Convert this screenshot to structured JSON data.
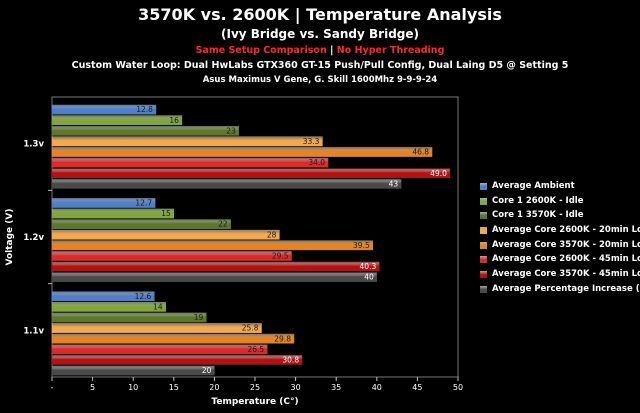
{
  "header": {
    "title": "3570K vs. 2600K | Temperature Analysis",
    "subtitle": "(Ivy Bridge vs. Sandy Bridge)",
    "note_part1": "Same Setup Comparison",
    "note_sep": " | ",
    "note_part2": "No Hyper Threading",
    "setup_line": "Custom Water Loop: Dual HwLabs GTX360 GT-15 Push/Pull Config, Dual Laing D5 @ Setting 5",
    "hardware_line": "Asus Maximus V Gene, G. Skill 1600Mhz 9-9-9-24"
  },
  "chart_data": {
    "type": "bar",
    "orientation": "horizontal",
    "xlabel": "Temperature (C°)",
    "ylabel": "Voltage (V)",
    "xlim": [
      0,
      50
    ],
    "x_ticks": [
      "-",
      "5",
      "10",
      "15",
      "20",
      "25",
      "30",
      "35",
      "40",
      "45",
      "50"
    ],
    "categories": [
      "1.3v",
      "1.2v",
      "1.1v"
    ],
    "legend_position": "right",
    "series": [
      {
        "name": "Average Ambient",
        "color": "#4d7fd0",
        "values": [
          12.8,
          12.7,
          12.6
        ],
        "labels": [
          "12.8",
          "12.7",
          "12.6"
        ]
      },
      {
        "name": "Core 1 2600K - Idle",
        "color": "#7fa73a",
        "values": [
          16,
          15,
          14
        ],
        "labels": [
          "16",
          "15",
          "14"
        ]
      },
      {
        "name": "Core 1 3570K - Idle",
        "color": "#5a7a2a",
        "values": [
          23,
          22,
          19
        ],
        "labels": [
          "23",
          "22",
          "19"
        ]
      },
      {
        "name": "Average Core 2600K - 20min Load",
        "color": "#f7a94a",
        "values": [
          33.3,
          28,
          25.8
        ],
        "labels": [
          "33.3",
          "28",
          "25.8"
        ]
      },
      {
        "name": "Average Core 3570K - 20min Load",
        "color": "#e8831d",
        "values": [
          46.8,
          39.5,
          29.8
        ],
        "labels": [
          "46.8",
          "39.5",
          "29.8"
        ]
      },
      {
        "name": "Average Core 2600K - 45min Load",
        "color": "#e02a2a",
        "values": [
          34.0,
          29.5,
          26.5
        ],
        "labels": [
          "34.0",
          "29.5",
          "26.5"
        ]
      },
      {
        "name": "Average Core 3570K - 45min Load",
        "color": "#b81010",
        "values": [
          49.0,
          40.3,
          30.8
        ],
        "labels": [
          "49.0",
          "40.3",
          "30.8"
        ]
      },
      {
        "name": "Average Percentage Increase (%)",
        "color": "#4a4a4a",
        "values": [
          43,
          40,
          20
        ],
        "labels": [
          "43",
          "40",
          "20"
        ]
      }
    ]
  }
}
